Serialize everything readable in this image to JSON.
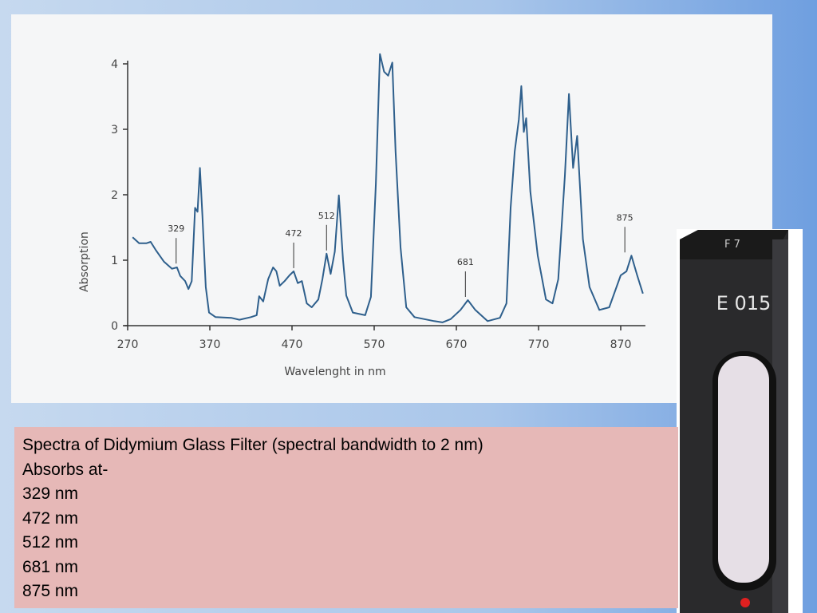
{
  "chart_data": {
    "type": "line",
    "x_label": "Wavelenght in nm",
    "y_label": "Absorption",
    "x": [
      276,
      284,
      293,
      298,
      304,
      314,
      324,
      330,
      334,
      340,
      344,
      348,
      352,
      355,
      358,
      361,
      365,
      369,
      377,
      396,
      406,
      420,
      427,
      430,
      435,
      441,
      447,
      451,
      455,
      461,
      467,
      472,
      477,
      482,
      488,
      494,
      502,
      507,
      512,
      517,
      522,
      527,
      532,
      536,
      544,
      559,
      566,
      572,
      577,
      582,
      587,
      592,
      596,
      602,
      609,
      619,
      643,
      653,
      663,
      675,
      684,
      693,
      708,
      723,
      731,
      736,
      741,
      746,
      749,
      752,
      755,
      760,
      769,
      779,
      787,
      794,
      802,
      807,
      812,
      817,
      824,
      832,
      844,
      856,
      870,
      877,
      883,
      890,
      897
    ],
    "values": [
      1.35,
      1.26,
      1.26,
      1.28,
      1.16,
      0.98,
      0.87,
      0.89,
      0.76,
      0.68,
      0.56,
      0.68,
      1.8,
      1.74,
      2.41,
      1.68,
      0.59,
      0.2,
      0.13,
      0.12,
      0.09,
      0.13,
      0.16,
      0.45,
      0.37,
      0.71,
      0.89,
      0.83,
      0.61,
      0.68,
      0.77,
      0.83,
      0.65,
      0.68,
      0.34,
      0.28,
      0.4,
      0.71,
      1.1,
      0.79,
      1.13,
      1.99,
      1.01,
      0.46,
      0.2,
      0.16,
      0.44,
      2.17,
      4.15,
      3.88,
      3.82,
      4.02,
      2.66,
      1.2,
      0.28,
      0.13,
      0.07,
      0.05,
      0.1,
      0.24,
      0.39,
      0.24,
      0.07,
      0.12,
      0.34,
      1.8,
      2.66,
      3.15,
      3.66,
      2.96,
      3.17,
      2.05,
      1.07,
      0.4,
      0.34,
      0.71,
      2.29,
      3.54,
      2.41,
      2.9,
      1.32,
      0.59,
      0.24,
      0.28,
      0.77,
      0.83,
      1.07,
      0.77,
      0.49
    ],
    "color": "#2e5f8c",
    "xlim": [
      270,
      900
    ],
    "ylim": [
      0,
      4
    ],
    "xticks": [
      270,
      370,
      470,
      570,
      670,
      770,
      870
    ],
    "yticks": [
      0,
      1,
      2,
      3,
      4
    ],
    "peaks": [
      {
        "x": 329,
        "y": 0.9
      },
      {
        "x": 472,
        "y": 0.83
      },
      {
        "x": 512,
        "y": 1.1
      },
      {
        "x": 681,
        "y": 0.39
      },
      {
        "x": 875,
        "y": 1.07
      }
    ]
  },
  "caption": {
    "lines": [
      "Spectra of Didymium Glass Filter (spectral bandwidth to 2 nm)",
      "Absorbs at-",
      "329 nm",
      "472 nm",
      "512 nm",
      "681 nm",
      "875 nm"
    ]
  },
  "filter": {
    "top_label": "F 7",
    "front_label": "E 015"
  }
}
